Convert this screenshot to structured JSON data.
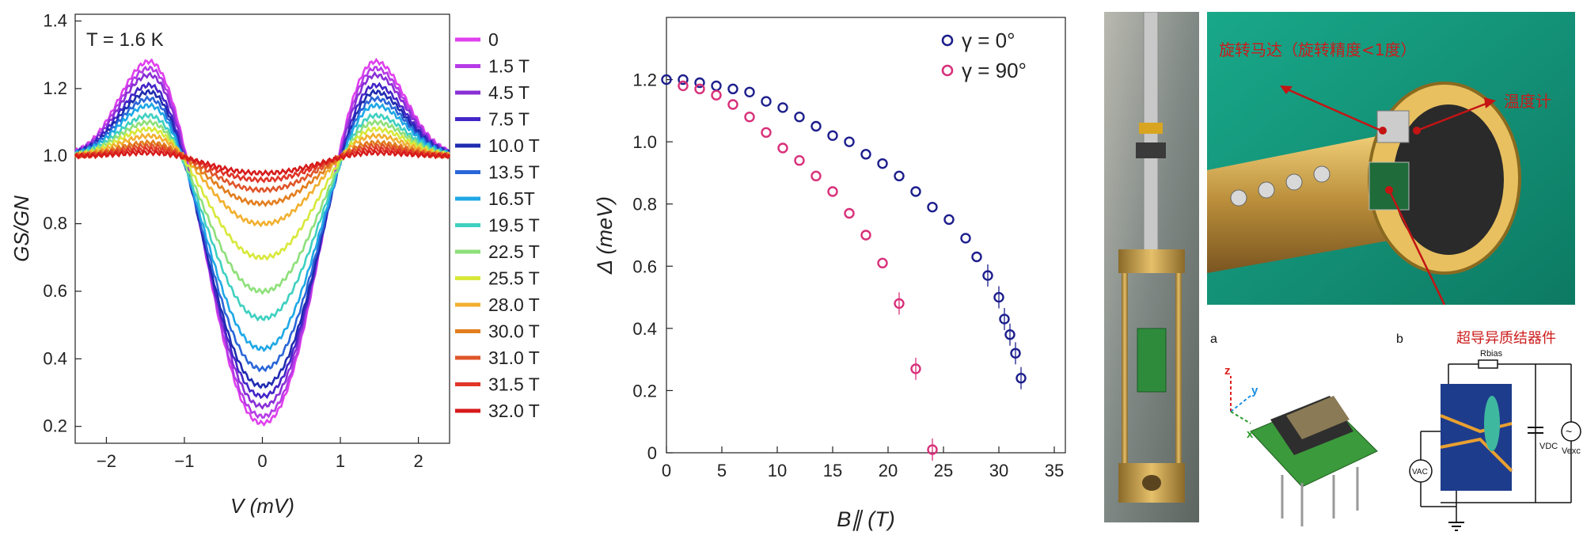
{
  "chart_data": [
    {
      "type": "line",
      "annotation": "T = 1.6 K",
      "xlabel": "V (mV)",
      "ylabel": "GS/GN",
      "xlim": [
        -2.4,
        2.4
      ],
      "ylim": [
        0.15,
        1.42
      ],
      "xticks": [
        "−2",
        "−1",
        "0",
        "1",
        "2"
      ],
      "yticks": [
        "0.2",
        "0.4",
        "0.6",
        "0.8",
        "1.0",
        "1.2",
        "1.4"
      ],
      "legend_placement": "right",
      "series": [
        {
          "name": "0",
          "color": "#e040ee",
          "zero_bias": 0.21,
          "peak": 1.28
        },
        {
          "name": "1.5 T",
          "color": "#b63be6",
          "zero_bias": 0.23,
          "peak": 1.26
        },
        {
          "name": "4.5 T",
          "color": "#8a2fd6",
          "zero_bias": 0.26,
          "peak": 1.24
        },
        {
          "name": "7.5 T",
          "color": "#4426c8",
          "zero_bias": 0.29,
          "peak": 1.21
        },
        {
          "name": "10.0 T",
          "color": "#1f2bb0",
          "zero_bias": 0.32,
          "peak": 1.19
        },
        {
          "name": "13.5 T",
          "color": "#2a66d8",
          "zero_bias": 0.37,
          "peak": 1.17
        },
        {
          "name": "16.5T",
          "color": "#1fa8e6",
          "zero_bias": 0.43,
          "peak": 1.15
        },
        {
          "name": "19.5 T",
          "color": "#3fd0c0",
          "zero_bias": 0.52,
          "peak": 1.12
        },
        {
          "name": "22.5 T",
          "color": "#8ee07a",
          "zero_bias": 0.6,
          "peak": 1.1
        },
        {
          "name": "25.5 T",
          "color": "#d8e83a",
          "zero_bias": 0.7,
          "peak": 1.08
        },
        {
          "name": "28.0 T",
          "color": "#f2b030",
          "zero_bias": 0.8,
          "peak": 1.06
        },
        {
          "name": "30.0 T",
          "color": "#e27e1e",
          "zero_bias": 0.86,
          "peak": 1.04
        },
        {
          "name": "31.0 T",
          "color": "#e0552a",
          "zero_bias": 0.9,
          "peak": 1.03
        },
        {
          "name": "31.5 T",
          "color": "#e03528",
          "zero_bias": 0.93,
          "peak": 1.02
        },
        {
          "name": "32.0 T",
          "color": "#d61a1a",
          "zero_bias": 0.95,
          "peak": 1.01
        }
      ]
    },
    {
      "type": "scatter",
      "xlabel": "B∥ (T)",
      "ylabel": "Δ (meV)",
      "xlim": [
        0,
        36
      ],
      "ylim": [
        0,
        1.4
      ],
      "xticks": [
        "0",
        "5",
        "10",
        "15",
        "20",
        "25",
        "30",
        "35"
      ],
      "yticks": [
        "0",
        "0.2",
        "0.4",
        "0.6",
        "0.8",
        "1.0",
        "1.2"
      ],
      "legend_placement": "top-right",
      "series": [
        {
          "name": "γ = 0°",
          "color": "#1c1e8c",
          "x": [
            0,
            1.5,
            3,
            4.5,
            6,
            7.5,
            9,
            10.5,
            12,
            13.5,
            15,
            16.5,
            18,
            19.5,
            21,
            22.5,
            24,
            25.5,
            27,
            28,
            29,
            30,
            30.5,
            31,
            31.5,
            32
          ],
          "y": [
            1.2,
            1.2,
            1.19,
            1.18,
            1.17,
            1.16,
            1.13,
            1.11,
            1.08,
            1.05,
            1.02,
            1.0,
            0.96,
            0.93,
            0.89,
            0.84,
            0.79,
            0.75,
            0.69,
            0.63,
            0.57,
            0.5,
            0.43,
            0.38,
            0.32,
            0.24
          ]
        },
        {
          "name": "γ = 90°",
          "color": "#d8307a",
          "x": [
            1.5,
            3,
            4.5,
            6,
            7.5,
            9,
            10.5,
            12,
            13.5,
            15,
            16.5,
            18,
            19.5,
            21,
            22.5,
            24
          ],
          "y": [
            1.18,
            1.17,
            1.15,
            1.12,
            1.08,
            1.03,
            0.98,
            0.94,
            0.89,
            0.84,
            0.77,
            0.7,
            0.61,
            0.48,
            0.27,
            0.01
          ]
        }
      ]
    }
  ],
  "photo": {
    "label_motor": "旋转马达（旋转精度<1度）",
    "label_thermometer": "温度计",
    "label_device": "超导异质结器件"
  },
  "diagram": {
    "label_a": "a",
    "label_b": "b",
    "axis_z": "z",
    "axis_y": "y",
    "axis_x": "x",
    "r_bias": "Rbias",
    "v_dc": "VDC",
    "v_exc": "Vexc",
    "v_ac": "VAC"
  }
}
